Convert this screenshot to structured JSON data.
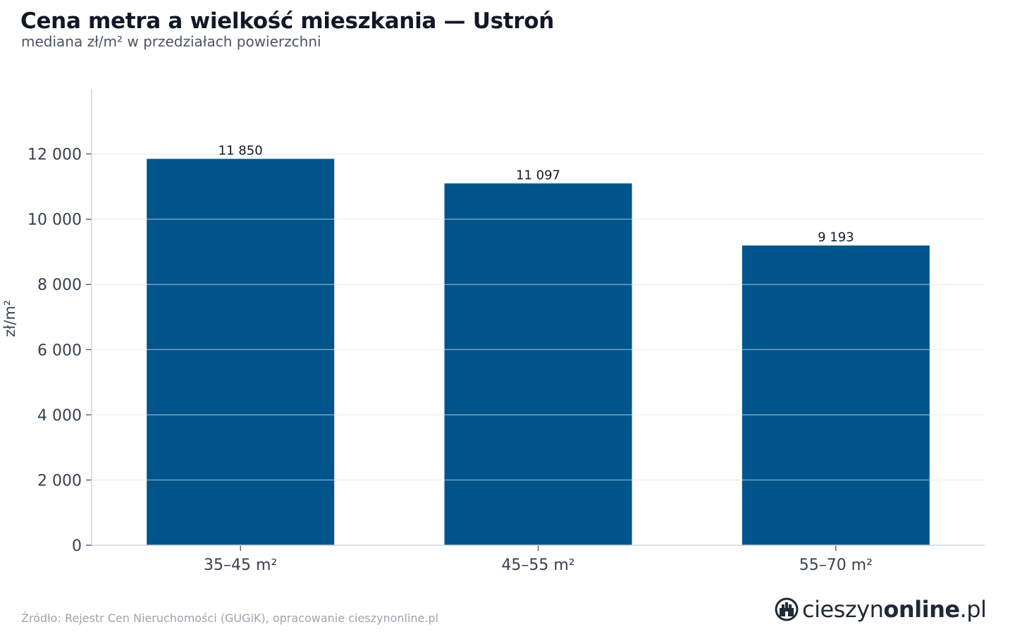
{
  "chart": {
    "title": "Cena metra a wielkość mieszkania — Ustroń",
    "subtitle": "mediana zł/m² w przedziałach powierzchni",
    "source": "Źródło: Rejestr Cen Nieruchomości (GUGiK), opracowanie cieszynonline.pl"
  },
  "logo": {
    "text_regular": "cieszyn",
    "text_bold": "online",
    "text_suffix": ".pl"
  },
  "colors": {
    "bar": "#00548c",
    "grid": "#e5e7eb",
    "axis": "#d1d5db",
    "tick_text": "#374151",
    "label_text": "#111827"
  },
  "chart_data": {
    "type": "bar",
    "categories": [
      "35–45 m²",
      "45–55 m²",
      "55–70 m²"
    ],
    "values": [
      11850,
      11097,
      9193
    ],
    "value_labels": [
      "11 850",
      "11 097",
      "9 193"
    ],
    "ylabel": "zł/m²",
    "xlabel": "",
    "ylim": [
      0,
      14000
    ],
    "yticks": [
      0,
      2000,
      4000,
      6000,
      8000,
      10000,
      12000
    ],
    "ytick_labels": [
      "0",
      "2 000",
      "4 000",
      "6 000",
      "8 000",
      "10 000",
      "12 000"
    ],
    "grid": true,
    "legend": "none"
  }
}
